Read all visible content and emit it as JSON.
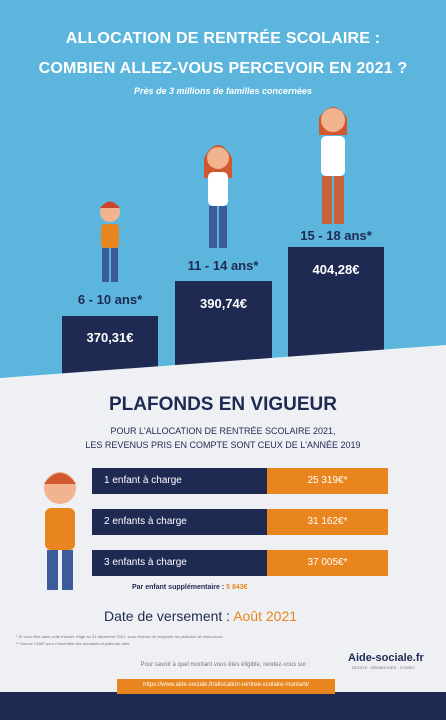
{
  "header": {
    "title_line1": "ALLOCATION DE RENTRÉE SCOLAIRE :",
    "title_line2": "COMBIEN ALLEZ-VOUS PERCEVOIR EN 2021 ?",
    "subtitle": "Près de 3 millions de familles concernées"
  },
  "ages": [
    {
      "label": "6 - 10 ans*",
      "amount": "370,31€"
    },
    {
      "label": "11 - 14 ans*",
      "amount": "390,74€"
    },
    {
      "label": "15 - 18 ans*",
      "amount": "404,28€"
    }
  ],
  "plafonds": {
    "title": "PLAFONDS EN VIGUEUR",
    "subtitle_line1": "POUR L'ALLOCATION DE RENTRÉE SCOLAIRE 2021,",
    "subtitle_line2": "LES REVENUS PRIS EN COMPTE SONT CEUX DE L'ANNÉE 2019",
    "rows": [
      {
        "label": "1 enfant à charge",
        "value": "25 319€*"
      },
      {
        "label": "2 enfants à charge",
        "value": "31 162€*"
      },
      {
        "label": "3 enfants à charge",
        "value": "37 005€*"
      }
    ],
    "extra_label": "Par enfant supplémentaire :",
    "extra_value": "5 843€"
  },
  "payment": {
    "label": "Date de versement :",
    "value": "Août 2021"
  },
  "footnotes": [
    "* Si vous êtes dans cette tranche d'âge au 31 décembre 2021, sous réserve de respecter les plafonds de ressources.",
    "** Source CNAF pour l'ensemble des montants et plafonds cités."
  ],
  "footer": {
    "prompt": "Pour savoir à quel montant vous êtes éligible, rendez-vous sur :",
    "url": "https://www.aide-sociale.fr/allocation-rentree-scolaire-montant/",
    "logo": "Aide-sociale.fr",
    "tagline": "DROITS · DÉMARCHES · CONSO"
  }
}
